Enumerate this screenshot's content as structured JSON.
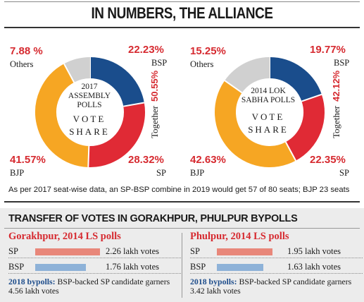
{
  "header": {
    "title": "IN NUMBERS, THE ALLIANCE"
  },
  "colors": {
    "bsp": "#1a4d8c",
    "sp": "#e02a35",
    "bjp": "#f6a623",
    "others": "#d0d0d0",
    "accent": "#d62a30",
    "bar_sp": "#e8877a",
    "bar_bsp": "#8eb2d8",
    "bypoll_key": "#1f4e8c"
  },
  "chart_data": [
    {
      "type": "pie",
      "title": "2017 ASSEMBLY POLLS",
      "subtitle": "VOTE SHARE",
      "categories": [
        "BSP",
        "SP",
        "BJP",
        "Others"
      ],
      "values": [
        22.23,
        28.32,
        41.57,
        7.88
      ],
      "value_labels": [
        "22.23%",
        "28.32%",
        "41.57%",
        "7.88 %"
      ],
      "together_label": "Together",
      "together_value": "50.55%"
    },
    {
      "type": "pie",
      "title": "2014 LOK SABHA POLLS",
      "subtitle": "VOTE SHARE",
      "categories": [
        "BSP",
        "SP",
        "BJP",
        "Others"
      ],
      "values": [
        19.77,
        22.35,
        42.63,
        15.25
      ],
      "value_labels": [
        "19.77%",
        "22.35%",
        "42.63%",
        "15.25%"
      ],
      "together_label": "Together",
      "together_value": "42.12%"
    },
    {
      "type": "bar",
      "title": "Gorakhpur, 2014 LS polls",
      "categories": [
        "SP",
        "BSP"
      ],
      "values": [
        2.26,
        1.76
      ],
      "value_labels": [
        "2.26 lakh votes",
        "1.76 lakh votes"
      ]
    },
    {
      "type": "bar",
      "title": "Phulpur, 2014 LS polls",
      "categories": [
        "SP",
        "BSP"
      ],
      "values": [
        1.95,
        1.63
      ],
      "value_labels": [
        "1.95 lakh votes",
        "1.63 lakh votes"
      ]
    }
  ],
  "donuts": [
    {
      "center_line1": "2017",
      "center_line2": "ASSEMBLY",
      "center_line3": "POLLS",
      "center_line4": "VOTE",
      "center_line5": "SHARE"
    },
    {
      "center_line1": "2014 LOK",
      "center_line2": "SABHA POLLS",
      "center_line3": "",
      "center_line4": "VOTE",
      "center_line5": "SHARE"
    }
  ],
  "footnote": "As per 2017 seat-wise data, an SP-BSP combine in 2019 would get 57 of 80 seats; BJP 23 seats",
  "transfer": {
    "title": "TRANSFER OF VOTES IN GORAKHPUR, PHULPUR BYPOLLS",
    "panels": [
      {
        "bypoll_key": "2018 bypolls:",
        "bypoll_text": " BSP-backed SP candidate garners 4.56 lakh votes"
      },
      {
        "bypoll_key": "2018 bypolls:",
        "bypoll_text": " BSP-backed SP candidate garners 3.42 lakh votes"
      }
    ]
  }
}
